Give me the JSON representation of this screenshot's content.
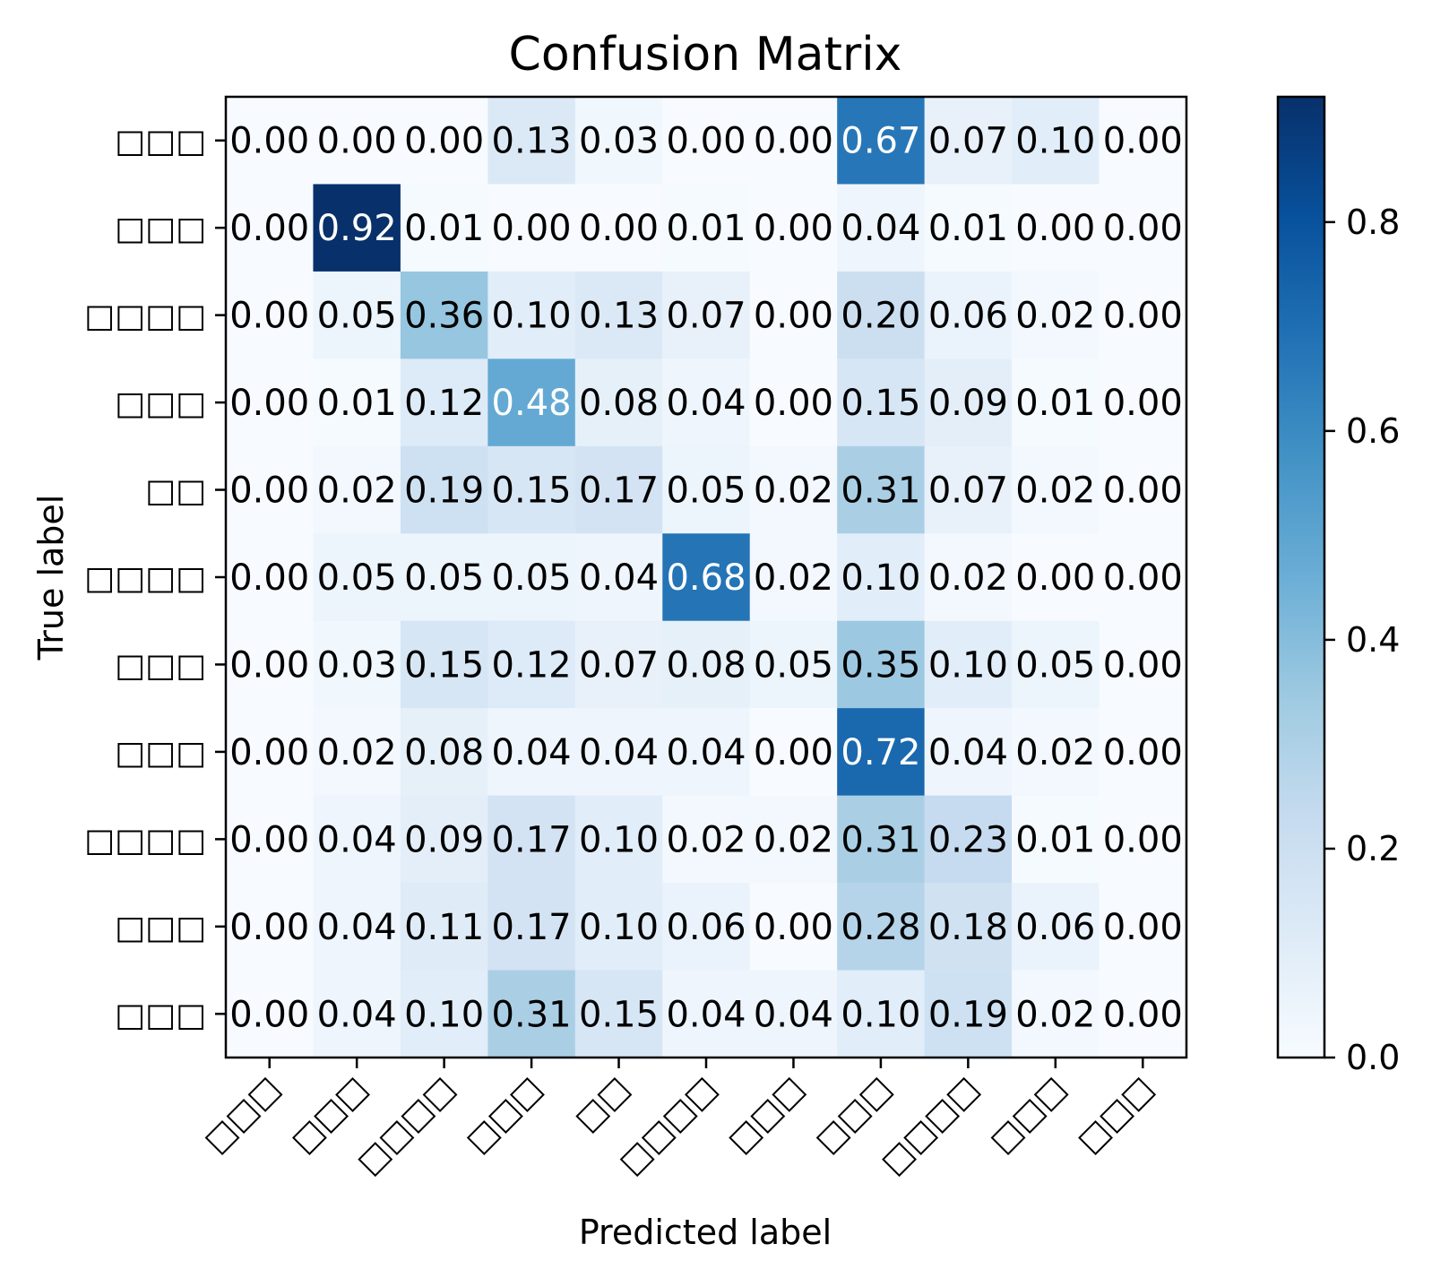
{
  "chart_data": {
    "type": "heatmap",
    "title": "Confusion Matrix",
    "xlabel": "Predicted label",
    "ylabel": "True label",
    "x_categories": [
      "□□□",
      "□□□",
      "□□□□",
      "□□□",
      "□□",
      "□□□□",
      "□□□",
      "□□□",
      "□□□□",
      "□□□",
      "□□□"
    ],
    "y_categories": [
      "□□□",
      "□□□",
      "□□□□",
      "□□□",
      "□□",
      "□□□□",
      "□□□",
      "□□□",
      "□□□□",
      "□□□",
      "□□□"
    ],
    "values": [
      [
        0.0,
        0.0,
        0.0,
        0.13,
        0.03,
        0.0,
        0.0,
        0.67,
        0.07,
        0.1,
        0.0
      ],
      [
        0.0,
        0.92,
        0.01,
        0.0,
        0.0,
        0.01,
        0.0,
        0.04,
        0.01,
        0.0,
        0.0
      ],
      [
        0.0,
        0.05,
        0.36,
        0.1,
        0.13,
        0.07,
        0.0,
        0.2,
        0.06,
        0.02,
        0.0
      ],
      [
        0.0,
        0.01,
        0.12,
        0.48,
        0.08,
        0.04,
        0.0,
        0.15,
        0.09,
        0.01,
        0.0
      ],
      [
        0.0,
        0.02,
        0.19,
        0.15,
        0.17,
        0.05,
        0.02,
        0.31,
        0.07,
        0.02,
        0.0
      ],
      [
        0.0,
        0.05,
        0.05,
        0.05,
        0.04,
        0.68,
        0.02,
        0.1,
        0.02,
        0.0,
        0.0
      ],
      [
        0.0,
        0.03,
        0.15,
        0.12,
        0.07,
        0.08,
        0.05,
        0.35,
        0.1,
        0.05,
        0.0
      ],
      [
        0.0,
        0.02,
        0.08,
        0.04,
        0.04,
        0.04,
        0.0,
        0.72,
        0.04,
        0.02,
        0.0
      ],
      [
        0.0,
        0.04,
        0.09,
        0.17,
        0.1,
        0.02,
        0.02,
        0.31,
        0.23,
        0.01,
        0.0
      ],
      [
        0.0,
        0.04,
        0.11,
        0.17,
        0.1,
        0.06,
        0.0,
        0.28,
        0.18,
        0.06,
        0.0
      ],
      [
        0.0,
        0.04,
        0.1,
        0.31,
        0.15,
        0.04,
        0.04,
        0.1,
        0.19,
        0.02,
        0.0
      ]
    ],
    "colormap": "Blues",
    "color_range": [
      0.0,
      0.92
    ],
    "colorbar_ticks": [
      "0.0",
      "0.2",
      "0.4",
      "0.6",
      "0.8"
    ],
    "colorbar_tick_values": [
      0.0,
      0.2,
      0.4,
      0.6,
      0.8
    ],
    "x_tick_rotation_deg": 45,
    "grid": false,
    "legend": "colorbar-right"
  }
}
